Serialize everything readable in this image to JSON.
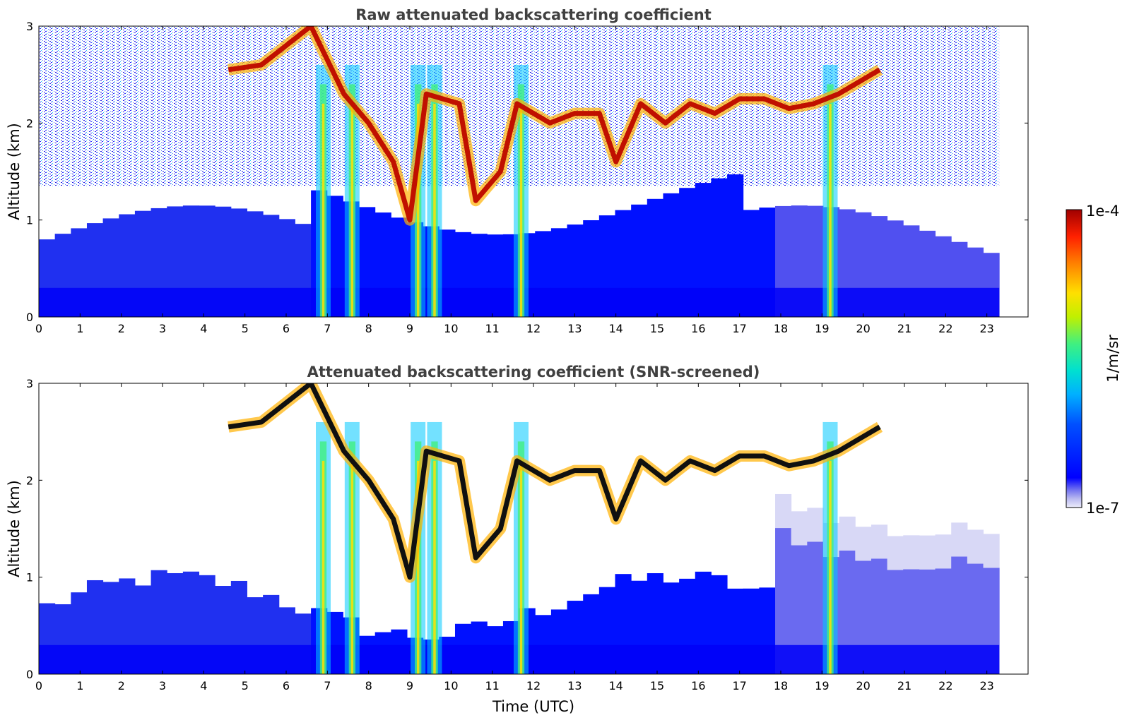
{
  "chart_data": [
    {
      "type": "heatmap",
      "title": "Raw attenuated backscattering coefficient",
      "xlabel": "",
      "ylabel": "Altitude (km)",
      "xlim": [
        0,
        24
      ],
      "ylim": [
        0,
        3
      ],
      "x_ticks": [
        "0",
        "1",
        "2",
        "3",
        "4",
        "5",
        "6",
        "7",
        "8",
        "9",
        "10",
        "11",
        "12",
        "13",
        "14",
        "15",
        "16",
        "17",
        "18",
        "19",
        "20",
        "21",
        "22",
        "23"
      ],
      "y_ticks": [
        "0",
        "1",
        "2",
        "3"
      ],
      "data_end_time": 23.3,
      "screened": false,
      "features": {
        "cloud_base_trace": [
          [
            4.6,
            2.55
          ],
          [
            5.4,
            2.6
          ],
          [
            6.0,
            2.8
          ],
          [
            6.6,
            3.0
          ],
          [
            7.4,
            2.3
          ],
          [
            8.0,
            2.0
          ],
          [
            8.6,
            1.6
          ],
          [
            9.0,
            1.0
          ],
          [
            9.4,
            2.3
          ],
          [
            10.2,
            2.2
          ],
          [
            10.6,
            1.2
          ],
          [
            11.2,
            1.5
          ],
          [
            11.6,
            2.2
          ],
          [
            12.4,
            2.0
          ],
          [
            13.0,
            2.1
          ],
          [
            13.6,
            2.1
          ],
          [
            14.0,
            1.6
          ],
          [
            14.6,
            2.2
          ],
          [
            15.2,
            2.0
          ],
          [
            15.8,
            2.2
          ],
          [
            16.4,
            2.1
          ],
          [
            17.0,
            2.25
          ],
          [
            17.6,
            2.25
          ],
          [
            18.2,
            2.15
          ],
          [
            18.8,
            2.2
          ],
          [
            19.4,
            2.3
          ],
          [
            20.0,
            2.45
          ],
          [
            20.4,
            2.55
          ]
        ],
        "precipitation_shafts": [
          [
            6.9,
            0.5
          ],
          [
            7.6,
            0.5
          ],
          [
            9.2,
            0.8
          ],
          [
            9.6,
            0.3
          ],
          [
            11.7,
            0.7
          ],
          [
            19.2,
            0.6
          ]
        ]
      }
    },
    {
      "type": "heatmap",
      "title": "Attenuated backscattering coefficient (SNR-screened)",
      "xlabel": "Time (UTC)",
      "ylabel": "Altitude (km)",
      "xlim": [
        0,
        24
      ],
      "ylim": [
        0,
        3
      ],
      "x_ticks": [
        "0",
        "1",
        "2",
        "3",
        "4",
        "5",
        "6",
        "7",
        "8",
        "9",
        "10",
        "11",
        "12",
        "13",
        "14",
        "15",
        "16",
        "17",
        "18",
        "19",
        "20",
        "21",
        "22",
        "23"
      ],
      "y_ticks": [
        "0",
        "1",
        "2",
        "3"
      ],
      "data_end_time": 23.3,
      "screened": true
    }
  ],
  "colorbar": {
    "label": "1/m/sr",
    "max_label": "1e-4",
    "min_label": "1e-7",
    "colormap": [
      "#e8e8f8",
      "#b8b8f0",
      "#7070f0",
      "#0000ff",
      "#0050ff",
      "#00b0ff",
      "#00e0d0",
      "#40f080",
      "#c0f000",
      "#ffe000",
      "#ff8000",
      "#ff2000",
      "#a00000"
    ]
  }
}
